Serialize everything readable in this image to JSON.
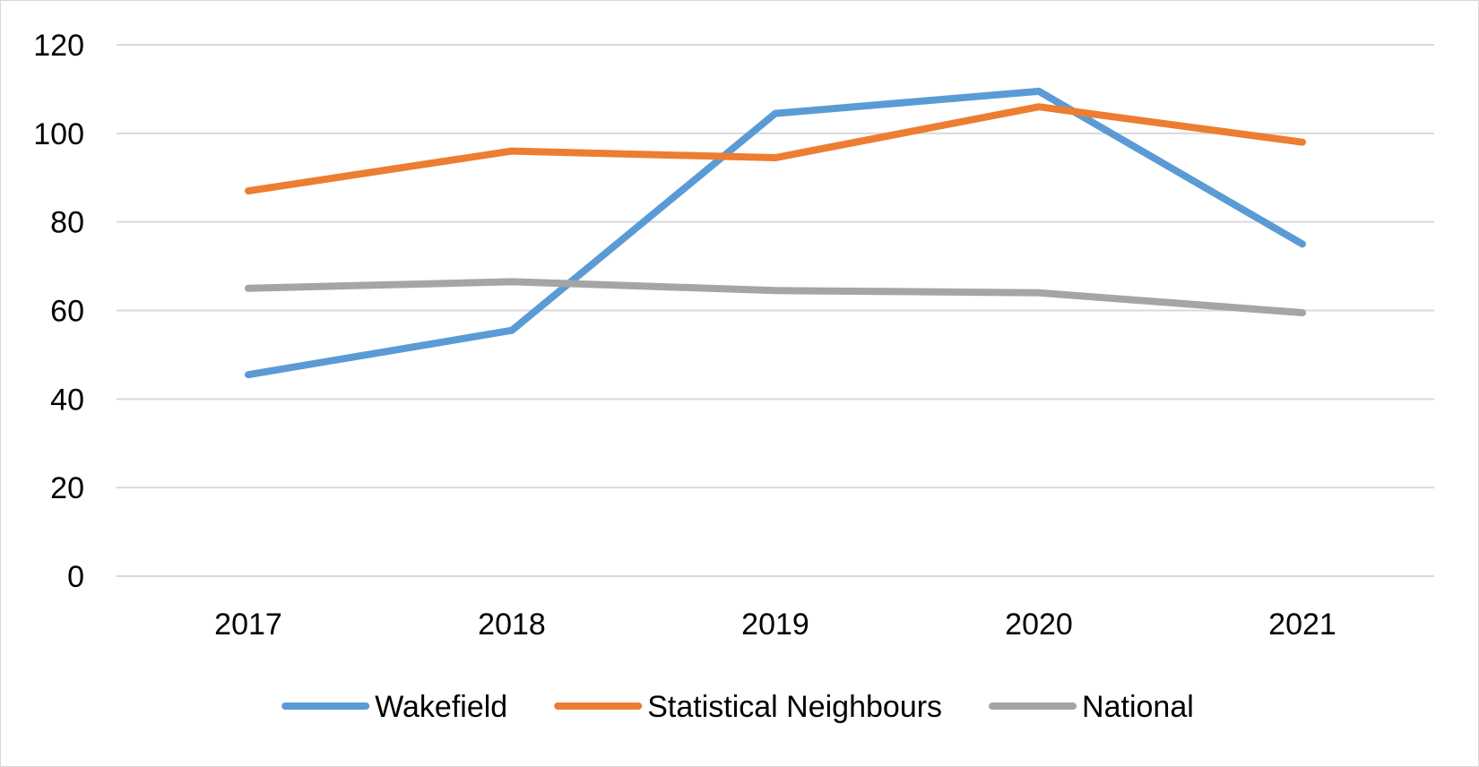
{
  "chart_data": {
    "type": "line",
    "title": "",
    "xlabel": "",
    "ylabel": "",
    "categories": [
      "2017",
      "2018",
      "2019",
      "2020",
      "2021"
    ],
    "ylim": [
      0,
      120
    ],
    "yticks": [
      0,
      20,
      40,
      60,
      80,
      100,
      120
    ],
    "grid": true,
    "legend_position": "bottom",
    "series": [
      {
        "name": "Wakefield",
        "color": "#5B9BD5",
        "values": [
          45.5,
          55.5,
          104.5,
          109.5,
          75
        ]
      },
      {
        "name": "Statistical Neighbours",
        "color": "#ED7D31",
        "values": [
          87,
          96,
          94.5,
          106,
          98
        ]
      },
      {
        "name": "National",
        "color": "#A5A5A5",
        "values": [
          65,
          66.5,
          64.5,
          64,
          59.5
        ]
      }
    ]
  }
}
